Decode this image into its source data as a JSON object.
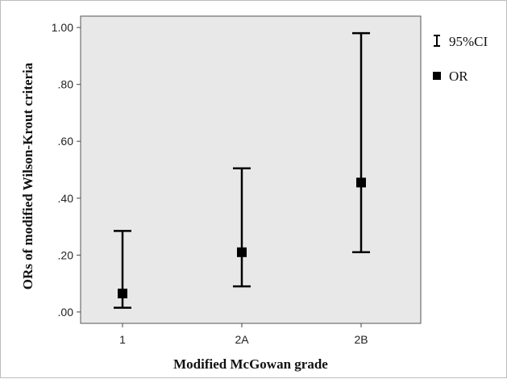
{
  "chart_data": {
    "type": "scatter",
    "categories": [
      "1",
      "2A",
      "2B"
    ],
    "series": [
      {
        "kind": "point",
        "values": [
          0.065,
          0.21,
          0.455
        ]
      },
      {
        "kind": "error_bar",
        "lower": [
          0.015,
          0.09,
          0.21
        ],
        "upper": [
          0.285,
          0.505,
          0.98
        ]
      }
    ],
    "xlabel": "Modified McGowan grade",
    "ylabel": "ORs of modified Wilson-Krout criteria",
    "ylim": [
      -0.04,
      1.04
    ],
    "yticks": [
      0.0,
      0.2,
      0.4,
      0.6,
      0.8,
      1.0
    ],
    "ytick_labels": [
      ".00",
      ".20",
      ".40",
      ".60",
      ".80",
      "1.00"
    ],
    "legend": [
      {
        "symbol": "error-bar",
        "label": "95%CI"
      },
      {
        "symbol": "square-marker",
        "label": "OR"
      }
    ],
    "legend_position": "top-right, outside plot",
    "grid": false,
    "colors": {
      "plot_background": "#e8e8e8",
      "marks": "#000000"
    }
  }
}
